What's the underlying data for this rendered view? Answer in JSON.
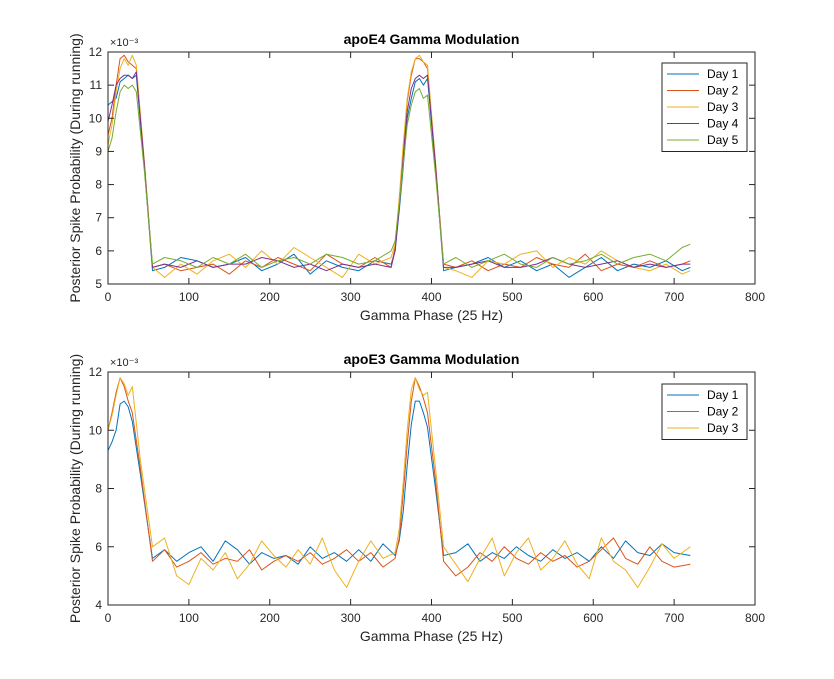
{
  "chart_data": [
    {
      "type": "line",
      "title": "apoE4 Gamma Modulation",
      "xlabel": "Gamma Phase (25 Hz)",
      "ylabel": "Posterior Spike Probability (During running)",
      "y_exponent_label": "×10⁻³",
      "xlim": [
        0,
        800
      ],
      "ylim": [
        5,
        12
      ],
      "xticks": [
        "0",
        "100",
        "200",
        "300",
        "400",
        "500",
        "600",
        "700",
        "800"
      ],
      "yticks": [
        "5",
        "6",
        "7",
        "8",
        "9",
        "10",
        "11",
        "12"
      ],
      "legend_position": "top-right",
      "colors": [
        "#0072BD",
        "#D95319",
        "#EDB120",
        "#7E2F8E",
        "#77AC30"
      ],
      "series": [
        {
          "name": "Day 1",
          "x": [
            0,
            5,
            10,
            15,
            20,
            25,
            30,
            35,
            45,
            55,
            70,
            90,
            110,
            130,
            150,
            170,
            190,
            210,
            230,
            250,
            270,
            290,
            310,
            330,
            350,
            355,
            360,
            365,
            370,
            375,
            380,
            385,
            390,
            395,
            405,
            415,
            430,
            450,
            470,
            490,
            510,
            530,
            550,
            570,
            590,
            610,
            630,
            650,
            670,
            690,
            710,
            720
          ],
          "values": [
            10.4,
            10.5,
            10.6,
            11.1,
            11.2,
            11.3,
            11.2,
            11.3,
            8.5,
            5.4,
            5.5,
            5.8,
            5.7,
            5.5,
            5.6,
            5.8,
            5.4,
            5.6,
            5.9,
            5.3,
            5.7,
            5.5,
            5.4,
            5.7,
            5.6,
            6.0,
            7.2,
            8.5,
            10.0,
            10.6,
            11.1,
            11.2,
            11.0,
            11.2,
            8.5,
            5.4,
            5.5,
            5.6,
            5.8,
            5.5,
            5.7,
            5.4,
            5.6,
            5.2,
            5.5,
            5.8,
            5.4,
            5.6,
            5.5,
            5.7,
            5.4,
            5.5
          ]
        },
        {
          "name": "Day 2",
          "x": [
            0,
            5,
            10,
            15,
            20,
            25,
            30,
            35,
            45,
            55,
            70,
            90,
            110,
            130,
            150,
            170,
            190,
            210,
            230,
            250,
            270,
            290,
            310,
            330,
            350,
            355,
            360,
            365,
            370,
            375,
            380,
            385,
            390,
            395,
            405,
            415,
            430,
            450,
            470,
            490,
            510,
            530,
            550,
            570,
            590,
            610,
            630,
            650,
            670,
            690,
            710,
            720
          ],
          "values": [
            9.5,
            10.0,
            11.0,
            11.8,
            11.9,
            11.7,
            11.6,
            11.5,
            8.6,
            5.5,
            5.6,
            5.4,
            5.5,
            5.6,
            5.3,
            5.7,
            5.5,
            5.8,
            5.6,
            5.4,
            5.9,
            5.6,
            5.5,
            5.8,
            5.5,
            6.1,
            7.5,
            9.0,
            10.5,
            11.3,
            11.8,
            11.8,
            11.7,
            11.5,
            8.6,
            5.6,
            5.5,
            5.7,
            5.4,
            5.6,
            5.5,
            5.8,
            5.6,
            5.5,
            5.9,
            5.4,
            5.6,
            5.5,
            5.7,
            5.5,
            5.6,
            5.7
          ]
        },
        {
          "name": "Day 3",
          "x": [
            0,
            5,
            10,
            15,
            20,
            25,
            30,
            35,
            45,
            55,
            70,
            90,
            110,
            130,
            150,
            170,
            190,
            210,
            230,
            250,
            270,
            290,
            310,
            330,
            350,
            355,
            360,
            365,
            370,
            375,
            380,
            385,
            390,
            395,
            405,
            415,
            430,
            450,
            470,
            490,
            510,
            530,
            550,
            570,
            590,
            610,
            630,
            650,
            670,
            690,
            710,
            720
          ],
          "values": [
            9.2,
            9.8,
            10.8,
            11.5,
            11.8,
            11.6,
            11.9,
            11.6,
            8.7,
            5.5,
            5.2,
            5.6,
            5.3,
            5.7,
            5.9,
            5.5,
            6.0,
            5.6,
            6.1,
            5.8,
            5.5,
            5.2,
            5.9,
            5.6,
            5.8,
            6.2,
            7.6,
            9.2,
            10.6,
            11.4,
            11.8,
            11.9,
            11.7,
            11.6,
            8.7,
            5.5,
            5.4,
            5.2,
            5.7,
            5.6,
            5.9,
            6.0,
            5.5,
            5.8,
            5.6,
            6.0,
            5.7,
            5.5,
            5.4,
            5.6,
            5.3,
            5.4
          ]
        },
        {
          "name": "Day 4",
          "x": [
            0,
            5,
            10,
            15,
            20,
            25,
            30,
            35,
            45,
            55,
            70,
            90,
            110,
            130,
            150,
            170,
            190,
            210,
            230,
            250,
            270,
            290,
            310,
            330,
            350,
            355,
            360,
            365,
            370,
            375,
            380,
            385,
            390,
            395,
            405,
            415,
            430,
            450,
            470,
            490,
            510,
            530,
            550,
            570,
            590,
            610,
            630,
            650,
            670,
            690,
            710,
            720
          ],
          "values": [
            9.9,
            10.4,
            11.0,
            11.2,
            11.3,
            11.3,
            11.2,
            11.4,
            8.6,
            5.5,
            5.6,
            5.5,
            5.7,
            5.5,
            5.6,
            5.6,
            5.8,
            5.7,
            5.5,
            5.6,
            5.4,
            5.6,
            5.5,
            5.6,
            5.5,
            6.0,
            7.3,
            8.8,
            10.2,
            10.9,
            11.2,
            11.3,
            11.2,
            11.3,
            8.6,
            5.5,
            5.5,
            5.6,
            5.7,
            5.5,
            5.5,
            5.6,
            5.8,
            5.6,
            5.5,
            5.6,
            5.7,
            5.5,
            5.6,
            5.5,
            5.6,
            5.6
          ]
        },
        {
          "name": "Day 5",
          "x": [
            0,
            5,
            10,
            15,
            20,
            25,
            30,
            35,
            45,
            55,
            70,
            90,
            110,
            130,
            150,
            170,
            190,
            210,
            230,
            250,
            270,
            290,
            310,
            330,
            350,
            355,
            360,
            365,
            370,
            375,
            380,
            385,
            390,
            395,
            405,
            415,
            430,
            450,
            470,
            490,
            510,
            530,
            550,
            570,
            590,
            610,
            630,
            650,
            670,
            690,
            710,
            720
          ],
          "values": [
            9.0,
            9.4,
            10.2,
            10.8,
            11.0,
            10.9,
            11.0,
            10.8,
            8.4,
            5.6,
            5.8,
            5.7,
            5.5,
            5.8,
            5.6,
            5.9,
            5.5,
            5.7,
            5.8,
            5.6,
            5.9,
            5.8,
            5.6,
            5.7,
            6.0,
            6.3,
            7.4,
            8.6,
            9.8,
            10.4,
            10.8,
            10.9,
            10.6,
            10.7,
            8.3,
            5.6,
            5.8,
            5.5,
            5.7,
            5.9,
            5.6,
            5.5,
            5.8,
            5.6,
            5.7,
            5.9,
            5.6,
            5.8,
            5.9,
            5.7,
            6.1,
            6.2
          ]
        }
      ]
    },
    {
      "type": "line",
      "title": "apoE3 Gamma Modulation",
      "xlabel": "Gamma Phase (25 Hz)",
      "ylabel": "Posterior Spike Probability (During running)",
      "y_exponent_label": "×10⁻³",
      "xlim": [
        0,
        800
      ],
      "ylim": [
        4,
        12
      ],
      "xticks": [
        "0",
        "100",
        "200",
        "300",
        "400",
        "500",
        "600",
        "700",
        "800"
      ],
      "yticks": [
        "4",
        "6",
        "8",
        "10",
        "12"
      ],
      "legend_position": "top-right",
      "colors": [
        "#0072BD",
        "#D95319",
        "#EDB120"
      ],
      "series": [
        {
          "name": "Day 1",
          "x": [
            0,
            5,
            10,
            15,
            20,
            25,
            30,
            40,
            55,
            70,
            85,
            100,
            115,
            130,
            145,
            160,
            175,
            190,
            205,
            220,
            235,
            250,
            265,
            280,
            295,
            310,
            325,
            340,
            355,
            360,
            365,
            370,
            375,
            380,
            385,
            390,
            395,
            405,
            415,
            430,
            445,
            460,
            475,
            490,
            505,
            520,
            535,
            550,
            565,
            580,
            595,
            610,
            625,
            640,
            655,
            670,
            685,
            700,
            720
          ],
          "values": [
            9.3,
            9.6,
            10.0,
            10.9,
            11.0,
            10.8,
            10.3,
            8.5,
            5.6,
            5.9,
            5.5,
            5.8,
            6.0,
            5.5,
            6.2,
            5.9,
            5.4,
            5.8,
            5.6,
            5.7,
            5.4,
            6.0,
            5.6,
            5.8,
            5.5,
            5.9,
            5.5,
            6.1,
            5.7,
            6.2,
            7.2,
            8.8,
            10.2,
            11.0,
            11.0,
            10.6,
            10.1,
            8.0,
            5.7,
            5.8,
            6.1,
            5.5,
            5.8,
            5.6,
            6.0,
            5.7,
            5.5,
            5.9,
            5.6,
            5.8,
            5.5,
            6.0,
            5.6,
            6.2,
            5.8,
            5.7,
            6.1,
            5.8,
            5.7
          ]
        },
        {
          "name": "Day 2",
          "x": [
            0,
            5,
            10,
            15,
            20,
            25,
            30,
            40,
            55,
            70,
            85,
            100,
            115,
            130,
            145,
            160,
            175,
            190,
            205,
            220,
            235,
            250,
            265,
            280,
            295,
            310,
            325,
            340,
            355,
            360,
            365,
            370,
            375,
            380,
            385,
            390,
            395,
            405,
            415,
            430,
            445,
            460,
            475,
            490,
            505,
            520,
            535,
            550,
            565,
            580,
            595,
            610,
            625,
            640,
            655,
            670,
            685,
            700,
            720
          ],
          "values": [
            10.0,
            10.6,
            11.3,
            11.8,
            11.5,
            11.0,
            10.6,
            8.7,
            5.5,
            5.9,
            5.3,
            5.5,
            5.8,
            5.4,
            5.6,
            5.5,
            5.9,
            5.2,
            5.5,
            5.7,
            5.5,
            5.8,
            5.4,
            5.6,
            5.9,
            5.5,
            5.8,
            5.3,
            5.6,
            6.3,
            7.8,
            9.5,
            11.0,
            11.8,
            11.5,
            11.1,
            10.6,
            8.3,
            5.5,
            5.0,
            5.3,
            5.8,
            5.5,
            6.0,
            5.6,
            5.4,
            5.8,
            5.5,
            5.7,
            5.3,
            5.5,
            5.9,
            6.3,
            5.6,
            5.4,
            6.0,
            5.5,
            5.3,
            5.4
          ]
        },
        {
          "name": "Day 3",
          "x": [
            0,
            5,
            10,
            15,
            20,
            25,
            30,
            40,
            55,
            70,
            85,
            100,
            115,
            130,
            145,
            160,
            175,
            190,
            205,
            220,
            235,
            250,
            265,
            280,
            295,
            310,
            325,
            340,
            355,
            360,
            365,
            370,
            375,
            380,
            385,
            390,
            395,
            405,
            415,
            430,
            445,
            460,
            475,
            490,
            505,
            520,
            535,
            550,
            565,
            580,
            595,
            610,
            625,
            640,
            655,
            670,
            685,
            700,
            720
          ],
          "values": [
            10.0,
            10.5,
            11.2,
            11.8,
            11.6,
            11.2,
            11.5,
            9.0,
            6.0,
            6.3,
            5.0,
            4.7,
            5.6,
            5.2,
            5.8,
            4.9,
            5.4,
            6.2,
            5.7,
            5.3,
            5.9,
            5.4,
            6.3,
            5.2,
            4.6,
            5.5,
            6.2,
            5.6,
            5.8,
            6.6,
            8.2,
            10.0,
            11.4,
            11.8,
            11.4,
            11.2,
            11.3,
            8.7,
            6.0,
            5.4,
            4.8,
            5.6,
            6.3,
            5.0,
            5.8,
            6.3,
            5.2,
            5.6,
            6.2,
            5.4,
            4.9,
            6.3,
            5.5,
            5.2,
            4.6,
            5.3,
            6.1,
            5.6,
            6.0
          ]
        }
      ]
    }
  ]
}
